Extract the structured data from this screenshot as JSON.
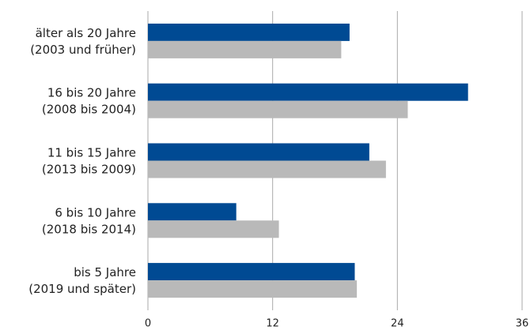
{
  "chart_data": {
    "type": "barh",
    "categories": [
      [
        "älter als 20 Jahre",
        "(2003 und früher)"
      ],
      [
        "16 bis 20 Jahre",
        "(2008 bis 2004)"
      ],
      [
        "11 bis 15 Jahre",
        "(2013 bis 2009)"
      ],
      [
        "6 bis 10 Jahre",
        "(2018 bis 2014)"
      ],
      [
        "bis 5 Jahre",
        "(2019 und später)"
      ]
    ],
    "series": [
      {
        "color": "#004a93",
        "values": [
          19.4,
          30.8,
          21.3,
          8.5,
          19.9
        ]
      },
      {
        "color": "#b9b9b9",
        "values": [
          18.6,
          25.0,
          22.9,
          12.6,
          20.1
        ]
      }
    ],
    "xlim": [
      0,
      36
    ],
    "xticks": [
      0,
      12,
      24,
      36
    ],
    "grid": true
  }
}
